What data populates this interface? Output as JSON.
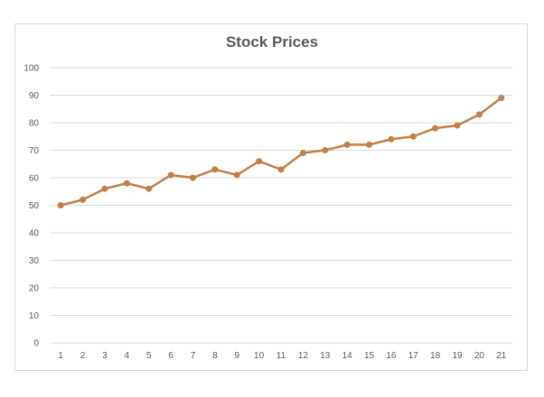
{
  "chart_data": {
    "type": "line",
    "title": "Stock Prices",
    "xlabel": "",
    "ylabel": "",
    "ylim": [
      0,
      100
    ],
    "yticks": [
      0,
      10,
      20,
      30,
      40,
      50,
      60,
      70,
      80,
      90,
      100
    ],
    "grid": true,
    "legend": "none",
    "categories": [
      "1",
      "2",
      "3",
      "4",
      "5",
      "6",
      "7",
      "8",
      "9",
      "10",
      "11",
      "12",
      "13",
      "14",
      "15",
      "16",
      "17",
      "18",
      "19",
      "20",
      "21"
    ],
    "series": [
      {
        "values": [
          50,
          52,
          56,
          58,
          56,
          61,
          60,
          63,
          61,
          66,
          63,
          69,
          70,
          72,
          72,
          74,
          75,
          78,
          79,
          83,
          89
        ]
      }
    ],
    "colors": {
      "line": "#c47f46",
      "grid": "#d9d9d9",
      "text": "#595959"
    }
  }
}
